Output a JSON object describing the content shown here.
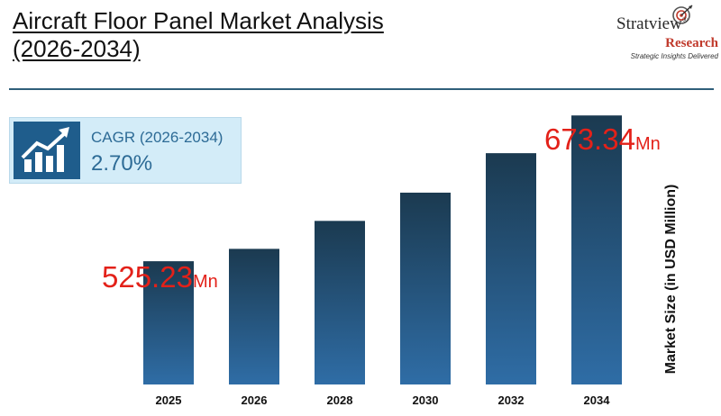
{
  "header": {
    "title_line1": "Aircraft Floor Panel Market Analysis",
    "title_line2": "(2026-2034)"
  },
  "logo": {
    "brand": "Stratview",
    "research": "Research",
    "tagline": "Strategic Insights Delivered",
    "registered": "®"
  },
  "cagr": {
    "label": "CAGR (2026-2034)",
    "value": "2.70%"
  },
  "callouts": {
    "first_value": "525.23",
    "first_unit": "Mn",
    "last_value": "673.34",
    "last_unit": "Mn"
  },
  "colors": {
    "bar_top": "#1b3a50",
    "bar_bottom": "#2f6da6",
    "accent_red": "#e32119",
    "cagr_text": "#2d6b96"
  },
  "chart_data": {
    "type": "bar",
    "title": "Aircraft Floor Panel Market Analysis (2026-2034)",
    "categories": [
      "2025",
      "2026",
      "2028",
      "2030",
      "2032",
      "2034"
    ],
    "values": [
      525.23,
      537.8,
      566.2,
      594.9,
      635.0,
      673.34
    ],
    "xlabel": "",
    "ylabel": "Market Size (in USD Million)",
    "ylim": [
      400,
      690
    ],
    "grid": false,
    "legend": "none"
  }
}
